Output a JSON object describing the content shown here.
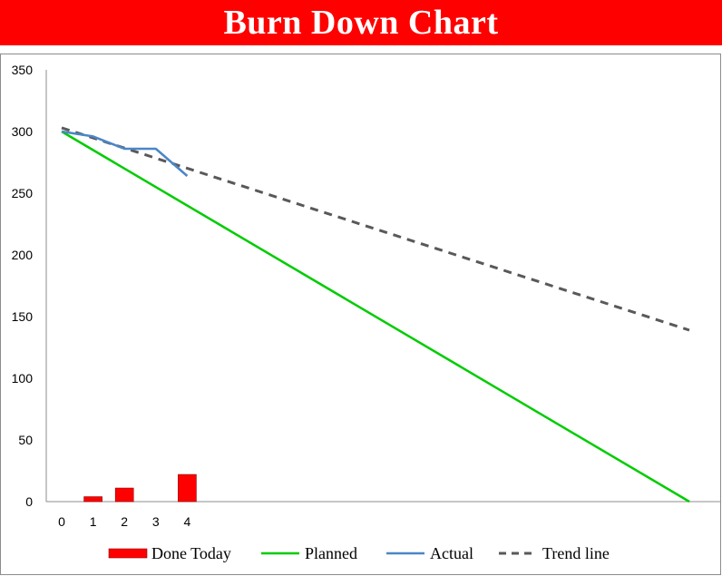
{
  "title": "Burn Down Chart",
  "colors": {
    "title_bg": "#ff0000",
    "done_today": "#ff0000",
    "planned": "#00cc00",
    "actual": "#4a86c8",
    "trend": "#595959"
  },
  "chart_data": {
    "type": "bar+line",
    "title": "",
    "xlabel": "",
    "ylabel": "",
    "ylim": [
      0,
      350
    ],
    "yticks": [
      0,
      50,
      100,
      150,
      200,
      250,
      300,
      350
    ],
    "xticks": [
      0,
      1,
      2,
      3,
      4
    ],
    "xlim": [
      0,
      20
    ],
    "grid": false,
    "legend_position": "bottom",
    "series": [
      {
        "name": "Done Today",
        "kind": "bar",
        "x": [
          1,
          2,
          3,
          4
        ],
        "values": [
          4,
          11,
          0,
          22
        ]
      },
      {
        "name": "Planned",
        "kind": "line",
        "x": [
          0,
          20
        ],
        "values": [
          300,
          0
        ]
      },
      {
        "name": "Actual",
        "kind": "line",
        "x": [
          0,
          1,
          2,
          3,
          4
        ],
        "values": [
          300,
          296,
          286,
          286,
          264
        ]
      },
      {
        "name": "Trend line",
        "kind": "dashed-line",
        "x": [
          0,
          20
        ],
        "values": [
          303,
          139
        ]
      }
    ]
  }
}
